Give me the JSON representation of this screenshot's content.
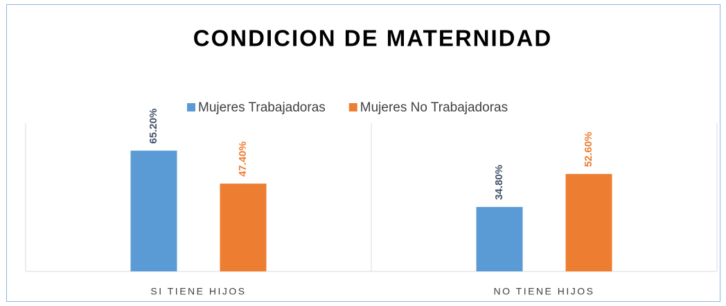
{
  "chart_data": {
    "type": "bar",
    "title": "CONDICION DE MATERNIDAD",
    "categories": [
      "SI TIENE HIJOS",
      "NO TIENE HIJOS"
    ],
    "series": [
      {
        "name": "Mujeres Trabajadoras",
        "color": "#5b9bd5",
        "label_color": "#44546a",
        "values": [
          65.2,
          34.8
        ],
        "value_labels": [
          "65.20%",
          "34.80%"
        ]
      },
      {
        "name": "Mujeres No Trabajadoras",
        "color": "#ed7d31",
        "label_color": "#ed7d31",
        "values": [
          47.4,
          52.6
        ],
        "value_labels": [
          "47.40%",
          "52.60%"
        ]
      }
    ],
    "ylim": [
      0,
      80
    ],
    "legend": "top"
  }
}
